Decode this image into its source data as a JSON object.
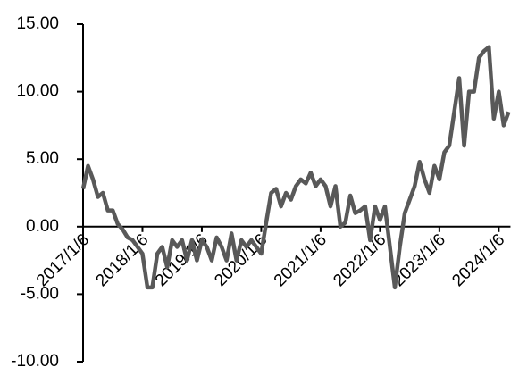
{
  "chart_data": {
    "type": "line",
    "categories": [
      "2017/1/6",
      null,
      null,
      null,
      null,
      null,
      null,
      null,
      null,
      null,
      null,
      null,
      "2018/1/6",
      null,
      null,
      null,
      null,
      null,
      null,
      null,
      null,
      null,
      null,
      null,
      "2019/1/6",
      null,
      null,
      null,
      null,
      null,
      null,
      null,
      null,
      null,
      null,
      null,
      "2020/1/6",
      null,
      null,
      null,
      null,
      null,
      null,
      null,
      null,
      null,
      null,
      null,
      "2021/1/6",
      null,
      null,
      null,
      null,
      null,
      null,
      null,
      null,
      null,
      null,
      null,
      "2022/1/6",
      null,
      null,
      null,
      null,
      null,
      null,
      null,
      null,
      null,
      null,
      null,
      "2023/1/6",
      null,
      null,
      null,
      null,
      null,
      null,
      null,
      null,
      null,
      null,
      null,
      "2024/1/6",
      null,
      null
    ],
    "series": [
      {
        "color": "#595959",
        "values": [
          2.8,
          4.5,
          3.5,
          2.2,
          2.5,
          1.2,
          1.2,
          0.2,
          -0.2,
          -0.8,
          -1.0,
          -1.5,
          -2,
          -4.5,
          -4.5,
          -2,
          -1.5,
          -3,
          -1,
          -1.5,
          -1,
          -2.5,
          -1,
          -2.5,
          -1,
          -1.5,
          -2.5,
          -0.8,
          -1.5,
          -2.5,
          -0.5,
          -2.5,
          -1,
          -1.5,
          -1,
          -1.5,
          -2,
          0.3,
          2.5,
          2.8,
          1.5,
          2.5,
          2.0,
          3.0,
          3.5,
          3.2,
          4.0,
          3.0,
          3.5,
          3.0,
          1.5,
          3.0,
          0.0,
          0.3,
          2.3,
          1.0,
          1.2,
          1.5,
          -1.0,
          1.5,
          0.5,
          1.5,
          -1.5,
          -4.5,
          -1.5,
          1.0,
          2.0,
          3.0,
          4.8,
          3.5,
          2.5,
          4.5,
          3.5,
          5.5,
          6.0,
          8.5,
          11.0,
          6.0,
          10.0,
          10.0,
          12.5,
          13.0,
          13.3,
          8.0,
          10.0,
          7.5,
          8.5
        ]
      }
    ],
    "ylim": [
      -10,
      15
    ],
    "yticks": [
      {
        "value": -10,
        "label": "-10.00"
      },
      {
        "value": -5,
        "label": "-5.00"
      },
      {
        "value": 0,
        "label": "0.00"
      },
      {
        "value": 5,
        "label": "5.00"
      },
      {
        "value": 10,
        "label": "10.00"
      },
      {
        "value": 15,
        "label": "15.00"
      }
    ]
  }
}
